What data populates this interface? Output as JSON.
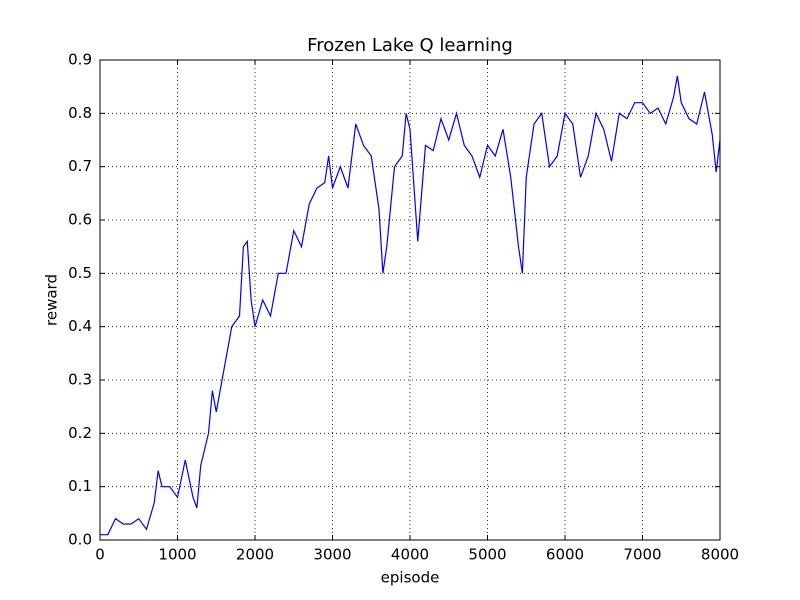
{
  "chart_data": {
    "type": "line",
    "title": "Frozen Lake Q learning",
    "x_label": "episode",
    "y_label": "reward",
    "x": [
      0,
      100,
      200,
      300,
      400,
      500,
      600,
      700,
      750,
      800,
      900,
      1000,
      1100,
      1200,
      1250,
      1300,
      1400,
      1450,
      1500,
      1600,
      1700,
      1800,
      1850,
      1900,
      1950,
      2000,
      2100,
      2200,
      2300,
      2400,
      2500,
      2600,
      2700,
      2800,
      2900,
      2950,
      3000,
      3100,
      3200,
      3300,
      3400,
      3500,
      3600,
      3650,
      3700,
      3800,
      3900,
      3950,
      4000,
      4100,
      4200,
      4300,
      4400,
      4500,
      4600,
      4700,
      4800,
      4900,
      5000,
      5100,
      5200,
      5300,
      5400,
      5450,
      5500,
      5600,
      5700,
      5800,
      5900,
      6000,
      6100,
      6200,
      6300,
      6400,
      6500,
      6600,
      6700,
      6800,
      6900,
      7000,
      7100,
      7200,
      7300,
      7400,
      7450,
      7500,
      7600,
      7700,
      7800,
      7900,
      7950,
      8000
    ],
    "series": [
      {
        "name": "reward",
        "color": "#0000ff",
        "values": [
          0.01,
          0.01,
          0.04,
          0.03,
          0.03,
          0.04,
          0.02,
          0.07,
          0.13,
          0.1,
          0.1,
          0.08,
          0.15,
          0.08,
          0.06,
          0.14,
          0.2,
          0.28,
          0.24,
          0.32,
          0.4,
          0.42,
          0.55,
          0.56,
          0.45,
          0.4,
          0.45,
          0.42,
          0.5,
          0.5,
          0.58,
          0.55,
          0.63,
          0.66,
          0.67,
          0.72,
          0.66,
          0.7,
          0.66,
          0.78,
          0.74,
          0.72,
          0.62,
          0.5,
          0.55,
          0.7,
          0.72,
          0.8,
          0.77,
          0.56,
          0.74,
          0.73,
          0.79,
          0.75,
          0.8,
          0.74,
          0.72,
          0.68,
          0.74,
          0.72,
          0.77,
          0.68,
          0.55,
          0.5,
          0.68,
          0.78,
          0.8,
          0.7,
          0.72,
          0.8,
          0.78,
          0.68,
          0.72,
          0.8,
          0.77,
          0.71,
          0.8,
          0.79,
          0.82,
          0.82,
          0.8,
          0.81,
          0.78,
          0.83,
          0.87,
          0.82,
          0.79,
          0.78,
          0.84,
          0.76,
          0.69,
          0.75
        ]
      }
    ],
    "xlim": [
      0,
      8000
    ],
    "xticks": [
      0,
      1000,
      2000,
      3000,
      4000,
      5000,
      6000,
      7000,
      8000
    ],
    "ylim": [
      0,
      0.9
    ],
    "yticks": [
      {
        "value": 0,
        "label": "0.0"
      },
      0.1,
      0.2,
      0.3,
      0.4,
      0.5,
      0.6,
      0.7,
      0.8,
      0.9
    ],
    "grid": true
  }
}
